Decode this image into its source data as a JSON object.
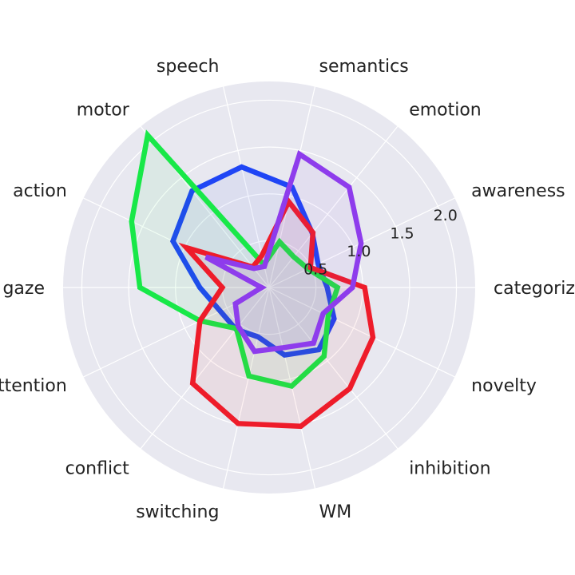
{
  "chart_data": {
    "type": "radar",
    "title": "",
    "axes": [
      "categorization",
      "awareness",
      "emotion",
      "semantics",
      "speech",
      "motor",
      "action",
      "gaze",
      "attention",
      "conflict",
      "switching",
      "WM",
      "inhibition",
      "novelty"
    ],
    "radial_ticks": [
      "0.5",
      "1.0",
      "1.5",
      "2.0"
    ],
    "radial_tick_values": [
      0.5,
      1.0,
      1.5,
      2.0
    ],
    "rlim": [
      0,
      2.2
    ],
    "grid": true,
    "background_color": "#e8e8f0",
    "series": [
      {
        "color": "#1f45f5",
        "values": [
          0.62,
          0.58,
          0.74,
          1.1,
          1.32,
          1.32,
          1.14,
          0.74,
          0.58,
          0.57,
          0.54,
          0.74,
          0.85,
          0.77
        ]
      },
      {
        "color": "#18e848",
        "values": [
          0.73,
          0.46,
          0.42,
          0.5,
          0.25,
          2.08,
          1.63,
          1.38,
          0.82,
          0.56,
          0.97,
          1.08,
          0.94,
          0.7
        ]
      },
      {
        "color": "#ee1c2a",
        "values": [
          1.02,
          0.49,
          0.75,
          0.94,
          0.35,
          0.28,
          0.98,
          0.5,
          0.82,
          1.31,
          1.49,
          1.52,
          1.38,
          1.23
        ]
      },
      {
        "color": "#8e3cec",
        "values": [
          0.89,
          1.09,
          1.37,
          1.46,
          0.23,
          0.26,
          0.75,
          0.08,
          0.4,
          0.53,
          0.7,
          0.66,
          0.76,
          0.64
        ]
      }
    ]
  }
}
